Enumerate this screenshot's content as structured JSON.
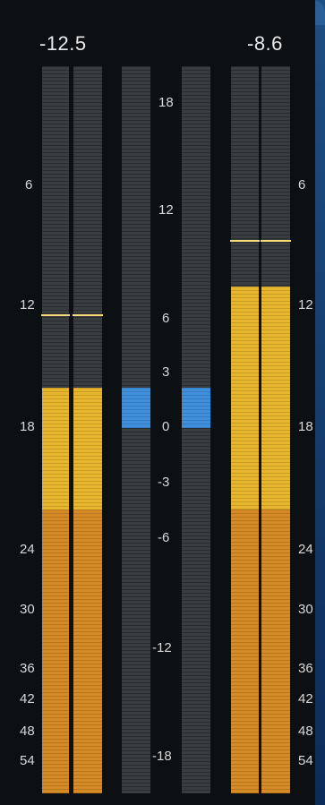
{
  "colors": {
    "background": "#0d1013",
    "track": "#3a3d40",
    "level_upper": "#e7b62c",
    "level_lower": "#d58a26",
    "peak_hold": "#f6dc76",
    "gain_reduction": "#3f8fdc",
    "frame_accent": "#1f4e83"
  },
  "left_meter": {
    "peak_readout": "-12.5",
    "level_db": -16,
    "peak_hold_db": -12.4
  },
  "right_meter": {
    "peak_readout": "-8.6",
    "level_db": -11,
    "peak_hold_db": -8.7
  },
  "gain_reduction_meter": {
    "value_min": 0,
    "value_max": 2
  },
  "level_scale": {
    "labels": [
      "6",
      "12",
      "18",
      "24",
      "30",
      "36",
      "42",
      "48",
      "54"
    ]
  },
  "center_scale": {
    "labels": [
      "18",
      "12",
      "6",
      "3",
      "0",
      "-3",
      "-6",
      "-12",
      "-18"
    ]
  }
}
